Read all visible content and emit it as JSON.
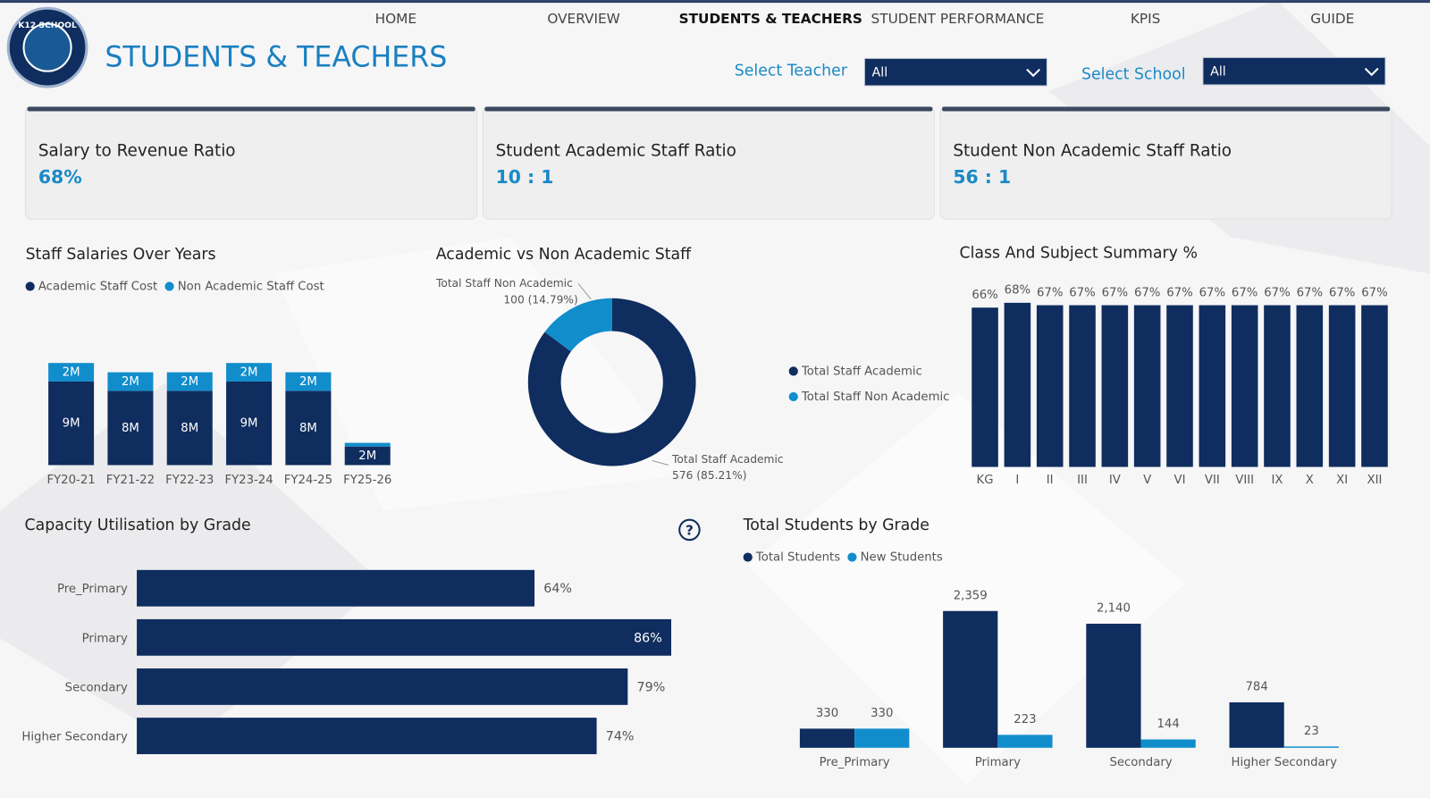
{
  "logo": "K12 SCHOOL",
  "nav": [
    "HOME",
    "OVERVIEW",
    "STUDENTS & TEACHERS",
    "STUDENT PERFORMANCE",
    "KPIS",
    "GUIDE"
  ],
  "header": {
    "title": "STUDENTS & TEACHERS"
  },
  "filters": [
    {
      "label": "Select Teacher",
      "value": "All"
    },
    {
      "label": "Select School",
      "value": "All"
    }
  ],
  "kpis": [
    {
      "label": "Salary to Revenue Ratio",
      "value": "68%"
    },
    {
      "label": "Student Academic Staff Ratio",
      "value": "10 : 1"
    },
    {
      "label": "Student Non Academic Staff Ratio",
      "value": "56 : 1"
    }
  ],
  "chart_data": [
    {
      "type": "stacked_bar",
      "title": "Staff Salaries Over Years",
      "legend": "top-left",
      "categories": [
        "FY20-21",
        "FY21-22",
        "FY22-23",
        "FY23-24",
        "FY24-25",
        "FY25-26"
      ],
      "series": [
        {
          "name": "Academic Staff Cost",
          "color": "#0f2d5e",
          "values": [
            9,
            8,
            8,
            9,
            8,
            2
          ],
          "value_labels": [
            "9M",
            "8M",
            "8M",
            "9M",
            "8M",
            "2M"
          ]
        },
        {
          "name": "Non Academic Staff Cost",
          "color": "#118dcc",
          "values": [
            2,
            2,
            2,
            2,
            2,
            0.4
          ],
          "value_labels": [
            "2M",
            "2M",
            "2M",
            "2M",
            "2M",
            null
          ]
        }
      ]
    },
    {
      "type": "donut",
      "title": "Academic vs Non Academic Staff",
      "legend": "right",
      "categories": [
        "Total Staff Academic",
        "Total Staff Non Academic"
      ],
      "values": [
        576,
        100
      ],
      "value_labels": [
        "576 (85.21%)",
        "100 (14.79%)"
      ],
      "colors": [
        "#0f2d5e",
        "#118dcc"
      ]
    },
    {
      "type": "bar",
      "title": "Class And Subject Summary %",
      "color": "#0f2d5e",
      "categories": [
        "KG",
        "I",
        "II",
        "III",
        "IV",
        "V",
        "VI",
        "VII",
        "VIII",
        "IX",
        "X",
        "XI",
        "XII"
      ],
      "values": [
        66,
        68,
        67,
        67,
        67,
        67,
        67,
        67,
        67,
        67,
        67,
        67,
        67
      ],
      "value_labels": [
        "66%",
        "68%",
        "67%",
        "67%",
        "67%",
        "67%",
        "67%",
        "67%",
        "67%",
        "67%",
        "67%",
        "67%",
        "67%"
      ]
    },
    {
      "type": "hbar",
      "title": "Capacity Utilisation by Grade",
      "color": "#0f2d5e",
      "categories": [
        "Pre_Primary",
        "Primary",
        "Secondary",
        "Higher Secondary"
      ],
      "values": [
        64,
        86,
        79,
        74
      ],
      "value_labels": [
        "64%",
        "86%",
        "79%",
        "74%"
      ]
    },
    {
      "type": "grouped_bar",
      "title": "Total Students by Grade",
      "legend": "top-left",
      "categories": [
        "Pre_Primary",
        "Primary",
        "Secondary",
        "Higher Secondary"
      ],
      "series": [
        {
          "name": "Total Students",
          "color": "#0f2d5e",
          "values": [
            330,
            2359,
            2140,
            784
          ],
          "value_labels": [
            "330",
            "2,359",
            "2,140",
            "784"
          ]
        },
        {
          "name": "New Students",
          "color": "#118dcc",
          "values": [
            330,
            223,
            144,
            23
          ]
        }
      ]
    }
  ]
}
